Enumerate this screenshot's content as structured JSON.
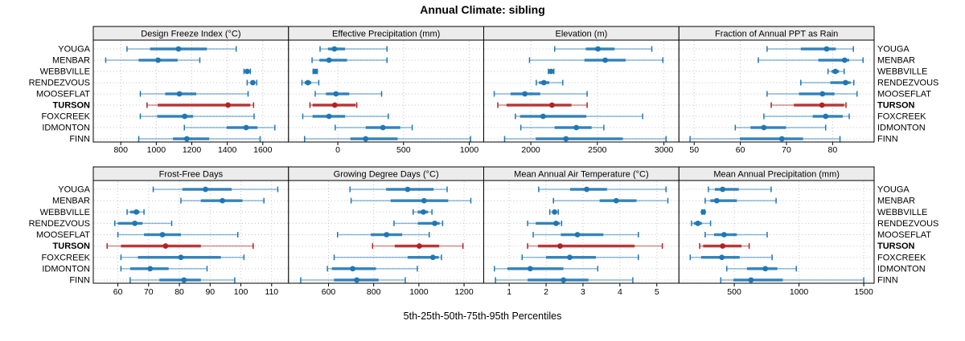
{
  "chart_data": {
    "type": "trellis-dotplot",
    "title": "Annual Climate: sibling",
    "caption": "5th-25th-50th-75th-95th Percentiles",
    "percentiles": [
      5,
      25,
      50,
      75,
      95
    ],
    "sites": [
      "YOUGA",
      "MENBAR",
      "WEBBVILLE",
      "RENDEZVOUS",
      "MOOSEFLAT",
      "TURSON",
      "FOXCREEK",
      "IDMONTON",
      "FINN"
    ],
    "bold_site": "TURSON",
    "labels_on_both_sides": true,
    "grid": "dotted",
    "colors": {
      "series": "#1f77b4",
      "highlight": "#b22222",
      "strip_bg": "#ececec",
      "border": "#000000",
      "gridline": "#c4c4c4"
    },
    "panels": [
      {
        "title": "Design Freeze Index (°C)",
        "ticks": [
          800,
          1000,
          1200,
          1400,
          1600
        ],
        "xlim": [
          645,
          1745
        ],
        "values": [
          [
            835,
            965,
            1125,
            1285,
            1450
          ],
          [
            715,
            900,
            1010,
            1120,
            1245
          ],
          [
            1494,
            1504,
            1512,
            1521,
            1530
          ],
          [
            1512,
            1530,
            1544,
            1556,
            1566
          ],
          [
            910,
            1050,
            1130,
            1225,
            1517
          ],
          [
            948,
            1008,
            1404,
            1530,
            1548
          ],
          [
            910,
            1005,
            1160,
            1207,
            1551
          ],
          [
            1158,
            1396,
            1506,
            1570,
            1668
          ],
          [
            901,
            1094,
            1172,
            1298,
            1585
          ]
        ]
      },
      {
        "title": "Effective Precipitation (mm)",
        "ticks": [
          0,
          500,
          1000
        ],
        "xlim": [
          -375,
          1110
        ],
        "values": [
          [
            -135,
            -75,
            -26,
            55,
            374
          ],
          [
            -196,
            -140,
            -67,
            70,
            374
          ],
          [
            -188,
            -180,
            -172,
            -163,
            -156
          ],
          [
            -273,
            -253,
            -228,
            -202,
            -145
          ],
          [
            -172,
            -90,
            -14,
            87,
            333
          ],
          [
            -212,
            -192,
            -23,
            135,
            144
          ],
          [
            -267,
            -192,
            -67,
            55,
            384
          ],
          [
            -20,
            212,
            343,
            475,
            566
          ],
          [
            -253,
            95,
            212,
            455,
            1010
          ]
        ]
      },
      {
        "title": "Elevation (m)",
        "ticks": [
          2000,
          2500,
          3000
        ],
        "xlim": [
          1646,
          3113
        ],
        "values": [
          [
            2179,
            2413,
            2504,
            2630,
            2909
          ],
          [
            1990,
            2403,
            2559,
            2712,
            2992
          ],
          [
            2132,
            2145,
            2152,
            2163,
            2173
          ],
          [
            2041,
            2061,
            2098,
            2138,
            2240
          ],
          [
            1725,
            1848,
            1955,
            2071,
            2423
          ],
          [
            1752,
            1817,
            2159,
            2305,
            2423
          ],
          [
            1884,
            1919,
            2092,
            2417,
            2840
          ],
          [
            1925,
            2179,
            2342,
            2457,
            2549
          ],
          [
            1803,
            2037,
            2264,
            2691,
            3016
          ]
        ]
      },
      {
        "title": "Fraction of Annual PPT as Rain",
        "ticks": [
          50,
          60,
          70,
          80
        ],
        "xlim": [
          46.7,
          89
        ],
        "values": [
          [
            65.8,
            73.1,
            78.7,
            80.7,
            84.5
          ],
          [
            63.9,
            76.9,
            82.6,
            83.6,
            86.6
          ],
          [
            79.0,
            79.8,
            80.6,
            81.4,
            82.5
          ],
          [
            73.1,
            79.5,
            82.8,
            83.9,
            84.6
          ],
          [
            65.8,
            72.7,
            77.8,
            80.4,
            85.3
          ],
          [
            66.7,
            71.6,
            77.7,
            82.5,
            82.9
          ],
          [
            65.1,
            75.7,
            78.5,
            82.2,
            83.6
          ],
          [
            58.9,
            62.2,
            65.1,
            69.9,
            78.5
          ],
          [
            49.1,
            59.9,
            69.0,
            73.6,
            81.6
          ]
        ]
      },
      {
        "title": "Frost-Free Days",
        "ticks": [
          60,
          70,
          80,
          90,
          100,
          110
        ],
        "xlim": [
          52,
          115.5
        ],
        "values": [
          [
            71.5,
            81,
            88.5,
            97,
            112
          ],
          [
            80.5,
            87,
            94,
            100.5,
            107.5
          ],
          [
            63,
            64,
            66,
            67,
            68.5
          ],
          [
            59,
            60,
            65.5,
            68,
            77.5
          ],
          [
            60,
            68.5,
            74.5,
            80.5,
            99
          ],
          [
            56.5,
            61,
            75.5,
            87,
            104
          ],
          [
            61,
            66.5,
            80.5,
            93.5,
            101
          ],
          [
            61,
            64,
            70.5,
            76.5,
            89
          ],
          [
            64,
            73.5,
            81.5,
            87,
            98
          ]
        ]
      },
      {
        "title": "Growing Degree Days (°C)",
        "ticks": [
          600,
          800,
          1000,
          1200
        ],
        "xlim": [
          423,
          1287
        ],
        "values": [
          [
            695,
            855,
            950,
            1065,
            1125
          ],
          [
            700,
            875,
            1023,
            1130,
            1230
          ],
          [
            975,
            995,
            1020,
            1040,
            1058
          ],
          [
            890,
            995,
            1070,
            1092,
            1105
          ],
          [
            640,
            787,
            857,
            926,
            1046
          ],
          [
            795,
            893,
            1002,
            1090,
            1195
          ],
          [
            625,
            950,
            1062,
            1088,
            1100
          ],
          [
            595,
            615,
            707,
            810,
            993
          ],
          [
            477,
            624,
            725,
            822,
            940
          ]
        ]
      },
      {
        "title": "Mean Annual Air Temperature (°C)",
        "ticks": [
          1,
          2,
          3,
          4,
          5
        ],
        "xlim": [
          0.31,
          5.6
        ],
        "values": [
          [
            1.8,
            2.65,
            3.1,
            3.65,
            5.25
          ],
          [
            2.2,
            3.45,
            3.9,
            4.45,
            5.3
          ],
          [
            2.1,
            2.17,
            2.23,
            2.28,
            2.33
          ],
          [
            1.5,
            1.72,
            2.27,
            2.37,
            2.42
          ],
          [
            1.65,
            2.4,
            2.85,
            3.55,
            4.5
          ],
          [
            1.5,
            1.78,
            2.38,
            4.4,
            5.15
          ],
          [
            1.35,
            2.0,
            2.64,
            3.35,
            4.5
          ],
          [
            0.6,
            0.95,
            1.57,
            2.47,
            3.4
          ],
          [
            0.63,
            1.5,
            2.47,
            3.15,
            4.35
          ]
        ]
      },
      {
        "title": "Mean Annual Precipitation (mm)",
        "ticks": [
          500,
          1000,
          1500
        ],
        "xlim": [
          73,
          1580
        ],
        "values": [
          [
            300,
            350,
            410,
            535,
            785
          ],
          [
            275,
            315,
            365,
            520,
            823
          ],
          [
            250,
            255,
            261,
            266,
            272
          ],
          [
            170,
            188,
            219,
            250,
            317
          ],
          [
            275,
            344,
            421,
            520,
            754
          ],
          [
            233,
            260,
            410,
            556,
            615
          ],
          [
            160,
            244,
            404,
            542,
            792
          ],
          [
            442,
            598,
            740,
            833,
            979
          ],
          [
            396,
            494,
            629,
            875,
            1500
          ]
        ]
      }
    ]
  }
}
